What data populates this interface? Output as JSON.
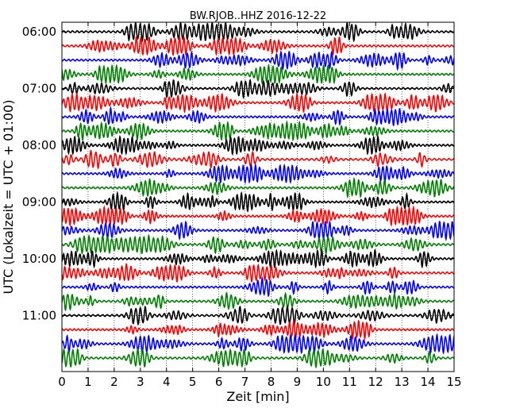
{
  "chart_data": {
    "type": "line",
    "title": "BW.RJOB..HHZ 2016-12-22",
    "xlabel": "Zeit  [min]",
    "ylabel": "UTC (Lokalzeit = UTC + 01:00)",
    "xlim": [
      0,
      15
    ],
    "x_ticks": [
      "0",
      "1",
      "2",
      "3",
      "4",
      "5",
      "6",
      "7",
      "8",
      "9",
      "10",
      "11",
      "12",
      "13",
      "14",
      "15"
    ],
    "y_ticks": [
      "06:00",
      "07:00",
      "08:00",
      "09:00",
      "10:00",
      "11:00"
    ],
    "start_time": "06:00",
    "end_time": "12:00",
    "trace_interval_min": 15,
    "trace_count": 24,
    "trace_color_cycle": [
      "#000000",
      "#ff0000",
      "#0000ff",
      "#008000"
    ],
    "grid": true,
    "legend": "none"
  }
}
